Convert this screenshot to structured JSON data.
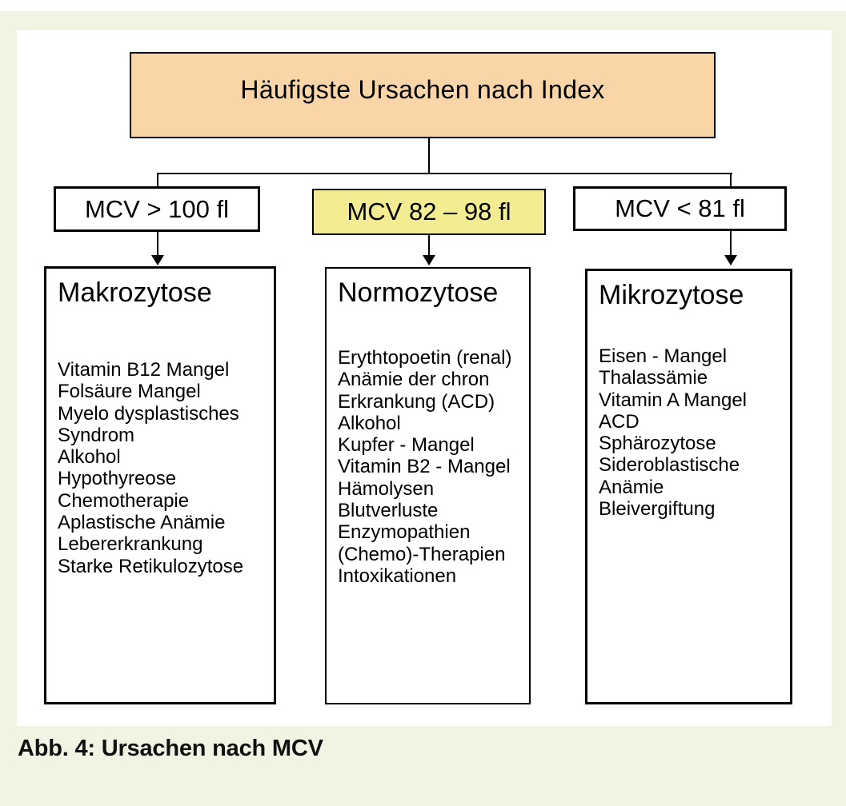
{
  "figure": {
    "caption": "Abb. 4: Ursachen nach MCV"
  },
  "diagram": {
    "title": "Häufigste Ursachen nach Index",
    "branches": [
      {
        "range_label": "MCV > 100 fl",
        "heading": "Makrozytose",
        "items": [
          "Vitamin B12 Mangel",
          "Folsäure Mangel",
          "Myelo dysplastisches",
          "Syndrom",
          "Alkohol",
          "Hypothyreose",
          "Chemotherapie",
          "Aplastische Anämie",
          "Lebererkrankung",
          "Starke Retikulozytose"
        ]
      },
      {
        "range_label": "MCV 82 – 98 fl",
        "heading": "Normozytose",
        "items": [
          "Erythtopoetin (renal)",
          "Anämie der chron",
          "Erkrankung (ACD)",
          "Alkohol",
          "Kupfer - Mangel",
          "Vitamin B2 - Mangel",
          "Hämolysen",
          "Blutverluste",
          "Enzymopathien",
          "(Chemo)-Therapien",
          "Intoxikationen"
        ]
      },
      {
        "range_label": "MCV < 81 fl",
        "heading": "Mikrozytose",
        "items": [
          "Eisen - Mangel",
          "Thalassämie",
          "Vitamin A Mangel",
          "ACD",
          "Sphärozytose",
          "Sideroblastische",
          "Anämie",
          "Bleivergiftung"
        ]
      }
    ],
    "colors": {
      "page_background": "#F2F4E3",
      "panel_background": "#FFFFFF",
      "title_box_background": "#FAD5A8",
      "highlight_box_background": "#F3EC92",
      "line_color": "#000000"
    }
  }
}
